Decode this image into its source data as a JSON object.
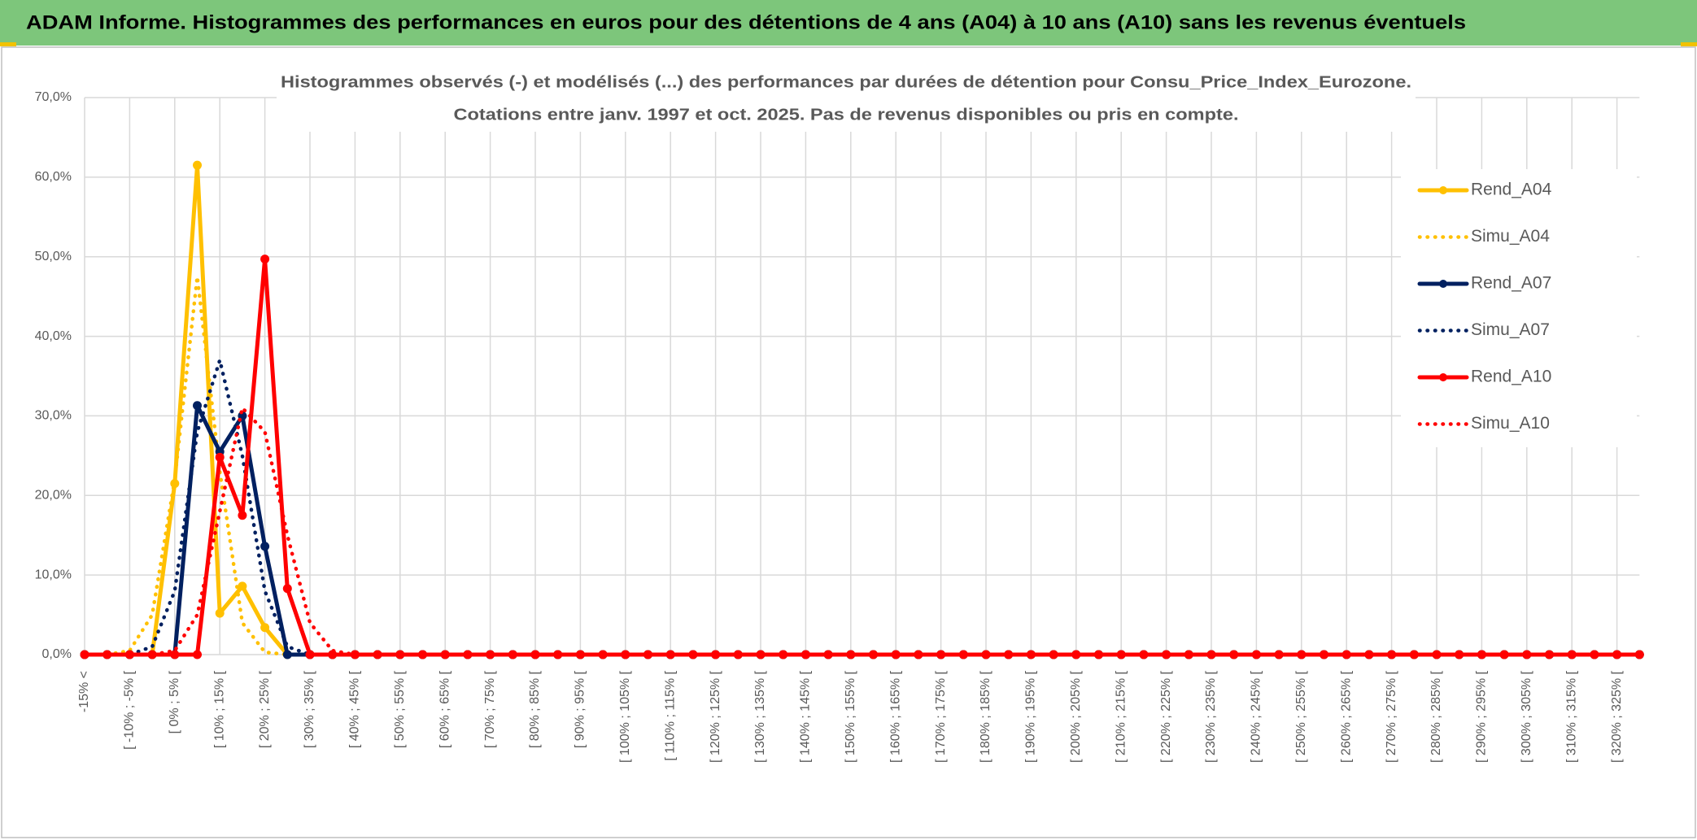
{
  "header": {
    "title": "ADAM Informe. Histogrammes des performances en euros pour des détentions de 4 ans (A04) à 10 ans (A10) sans les revenus éventuels"
  },
  "chart_data": {
    "type": "line",
    "title": "Histogrammes observés (-) et modélisés (...) des performances par durées de détention pour Consu_Price_Index_Eurozone.",
    "subtitle": "Cotations entre janv. 1997 et oct. 2025. Pas de revenus disponibles ou pris en compte.",
    "categories": [
      "-15% <",
      null,
      "[ -10% ; -5% [",
      null,
      "[ 0% ; 5% [",
      null,
      "[ 10% ; 15% [",
      null,
      "[ 20% ; 25% [",
      null,
      "[ 30% ; 35% [",
      null,
      "[ 40% ; 45% [",
      null,
      "[ 50% ; 55% [",
      null,
      "[ 60% ; 65% [",
      null,
      "[ 70% ; 75% [",
      null,
      "[ 80% ; 85% [",
      null,
      "[ 90% ; 95% [",
      null,
      "[ 100% ; 105% [",
      null,
      "[ 110% ; 115% [",
      null,
      "[ 120% ; 125% [",
      null,
      "[ 130% ; 135% [",
      null,
      "[ 140% ; 145% [",
      null,
      "[ 150% ; 155% [",
      null,
      "[ 160% ; 165% [",
      null,
      "[ 170% ; 175% [",
      null,
      "[ 180% ; 185% [",
      null,
      "[ 190% ; 195% [",
      null,
      "[ 200% ; 205% [",
      null,
      "[ 210% ; 215% [",
      null,
      "[ 220% ; 225% [",
      null,
      "[ 230% ; 235% [",
      null,
      "[ 240% ; 245% [",
      null,
      "[ 250% ; 255% [",
      null,
      "[ 260% ; 265% [",
      null,
      "[ 270% ; 275% [",
      null,
      "[ 280% ; 285% [",
      null,
      "[ 290% ; 295% [",
      null,
      "[ 300% ; 305% [",
      null,
      "[ 310% ; 315% [",
      null,
      "[ 320% ; 325% [",
      null
    ],
    "series": [
      {
        "name": "Rend_A04",
        "color": "#ffc000",
        "dotted": false,
        "values": [
          0,
          0,
          0,
          0,
          21.5,
          61.5,
          5.2,
          8.6,
          3.4,
          0,
          0,
          0,
          0,
          0,
          0,
          0,
          0,
          0,
          0,
          0,
          0,
          0,
          0,
          0,
          0,
          0,
          0,
          0,
          0,
          0,
          0,
          0,
          0,
          0,
          0,
          0,
          0,
          0,
          0,
          0,
          0,
          0,
          0,
          0,
          0,
          0,
          0,
          0,
          0,
          0,
          0,
          0,
          0,
          0,
          0,
          0,
          0,
          0,
          0,
          0,
          0,
          0,
          0,
          0,
          0,
          0,
          0,
          0,
          0,
          0
        ]
      },
      {
        "name": "Simu_A04",
        "color": "#ffc000",
        "dotted": true,
        "values": [
          0,
          0,
          0.5,
          5,
          22,
          47.5,
          23,
          4,
          0.3,
          0,
          0,
          0,
          0,
          0,
          0,
          0,
          0,
          0,
          0,
          0,
          0,
          0,
          0,
          0,
          0,
          0,
          0,
          0,
          0,
          0,
          0,
          0,
          0,
          0,
          0,
          0,
          0,
          0,
          0,
          0,
          0,
          0,
          0,
          0,
          0,
          0,
          0,
          0,
          0,
          0,
          0,
          0,
          0,
          0,
          0,
          0,
          0,
          0,
          0,
          0,
          0,
          0,
          0,
          0,
          0,
          0,
          0,
          0,
          0,
          0
        ]
      },
      {
        "name": "Rend_A07",
        "color": "#002060",
        "dotted": false,
        "values": [
          0,
          0,
          0,
          0,
          0,
          31.3,
          25.5,
          30,
          13.6,
          0,
          0,
          0,
          0,
          0,
          0,
          0,
          0,
          0,
          0,
          0,
          0,
          0,
          0,
          0,
          0,
          0,
          0,
          0,
          0,
          0,
          0,
          0,
          0,
          0,
          0,
          0,
          0,
          0,
          0,
          0,
          0,
          0,
          0,
          0,
          0,
          0,
          0,
          0,
          0,
          0,
          0,
          0,
          0,
          0,
          0,
          0,
          0,
          0,
          0,
          0,
          0,
          0,
          0,
          0,
          0,
          0,
          0,
          0,
          0,
          0
        ]
      },
      {
        "name": "Simu_A07",
        "color": "#002060",
        "dotted": true,
        "values": [
          0,
          0,
          0,
          1,
          8,
          28,
          37,
          25,
          8,
          1,
          0,
          0,
          0,
          0,
          0,
          0,
          0,
          0,
          0,
          0,
          0,
          0,
          0,
          0,
          0,
          0,
          0,
          0,
          0,
          0,
          0,
          0,
          0,
          0,
          0,
          0,
          0,
          0,
          0,
          0,
          0,
          0,
          0,
          0,
          0,
          0,
          0,
          0,
          0,
          0,
          0,
          0,
          0,
          0,
          0,
          0,
          0,
          0,
          0,
          0,
          0,
          0,
          0,
          0,
          0,
          0,
          0,
          0,
          0,
          0
        ]
      },
      {
        "name": "Rend_A10",
        "color": "#ff0000",
        "dotted": false,
        "values": [
          0,
          0,
          0,
          0,
          0,
          0,
          24.8,
          17.5,
          49.7,
          8.3,
          0,
          0,
          0,
          0,
          0,
          0,
          0,
          0,
          0,
          0,
          0,
          0,
          0,
          0,
          0,
          0,
          0,
          0,
          0,
          0,
          0,
          0,
          0,
          0,
          0,
          0,
          0,
          0,
          0,
          0,
          0,
          0,
          0,
          0,
          0,
          0,
          0,
          0,
          0,
          0,
          0,
          0,
          0,
          0,
          0,
          0,
          0,
          0,
          0,
          0,
          0,
          0,
          0,
          0,
          0,
          0,
          0,
          0,
          0,
          0
        ]
      },
      {
        "name": "Simu_A10",
        "color": "#ff0000",
        "dotted": true,
        "values": [
          0,
          0,
          0,
          0,
          0.5,
          5,
          18,
          31,
          28,
          15,
          4,
          0.5,
          0,
          0,
          0,
          0,
          0,
          0,
          0,
          0,
          0,
          0,
          0,
          0,
          0,
          0,
          0,
          0,
          0,
          0,
          0,
          0,
          0,
          0,
          0,
          0,
          0,
          0,
          0,
          0,
          0,
          0,
          0,
          0,
          0,
          0,
          0,
          0,
          0,
          0,
          0,
          0,
          0,
          0,
          0,
          0,
          0,
          0,
          0,
          0,
          0,
          0,
          0,
          0,
          0,
          0,
          0,
          0,
          0,
          0
        ]
      }
    ],
    "ylim": [
      0,
      70
    ],
    "yticks": [
      {
        "value": 0,
        "label": "0,0%"
      },
      {
        "value": 10,
        "label": "10,0%"
      },
      {
        "value": 20,
        "label": "20,0%"
      },
      {
        "value": 30,
        "label": "30,0%"
      },
      {
        "value": 40,
        "label": "40,0%"
      },
      {
        "value": 50,
        "label": "50,0%"
      },
      {
        "value": 60,
        "label": "60,0%"
      },
      {
        "value": 70,
        "label": "70,0%"
      }
    ],
    "grid": true,
    "legend": "right"
  }
}
